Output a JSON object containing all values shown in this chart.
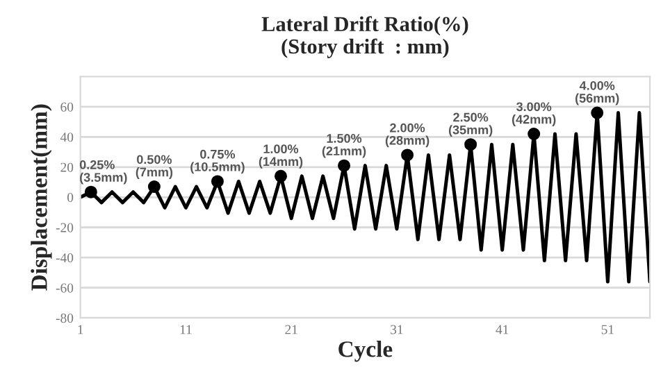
{
  "chart_data": {
    "type": "line",
    "title": "Lateral Drift Ratio(%)\n(Story drift  : mm)",
    "xlabel": "Cycle",
    "ylabel": "Displacement(mm)",
    "xlim": [
      1,
      55
    ],
    "xticks": [
      1,
      11,
      21,
      31,
      41,
      51
    ],
    "ylim": [
      -80,
      80
    ],
    "yticks": [
      -80,
      -60,
      -40,
      -20,
      0,
      20,
      40,
      60
    ],
    "grid": "y",
    "marker": "none",
    "line_style": "solid",
    "series": [
      {
        "color": "#000000",
        "x": [
          1,
          2,
          3,
          4,
          5,
          6,
          7,
          8,
          9,
          10,
          11,
          12,
          13,
          14,
          15,
          16,
          17,
          18,
          19,
          20,
          21,
          22,
          23,
          24,
          25,
          26,
          27,
          28,
          29,
          30,
          31,
          32,
          33,
          34,
          35,
          36,
          37,
          38,
          39,
          40,
          41,
          42,
          43,
          44,
          45,
          46,
          47,
          48,
          49,
          50,
          51,
          52,
          53,
          54,
          55
        ],
        "values": [
          0,
          3.5,
          -3.5,
          3.5,
          -3.5,
          3.5,
          -3.5,
          7,
          -7,
          7,
          -7,
          7,
          -7,
          10.5,
          -10.5,
          10.5,
          -10.5,
          10.5,
          -10.5,
          14,
          -14,
          14,
          -14,
          14,
          -14,
          21,
          -21,
          21,
          -21,
          21,
          -21,
          28,
          -28,
          28,
          -28,
          28,
          -28,
          35,
          -35,
          35,
          -35,
          35,
          -35,
          42,
          -42,
          42,
          -42,
          42,
          -42,
          56,
          -56,
          56,
          -56,
          56,
          -56
        ]
      },
      {
        "type": "scatter",
        "marker": "circle",
        "color": "#000000",
        "x": [
          2,
          8,
          14,
          20,
          26,
          32,
          38,
          44,
          50
        ],
        "values": [
          3.5,
          7,
          10.5,
          14,
          21,
          28,
          35,
          42,
          56
        ]
      }
    ],
    "annotations": [
      {
        "text": "0.25%\n(3.5mm)",
        "x": 2,
        "y": 3.5
      },
      {
        "text": "0.50%\n(7mm)",
        "x": 8,
        "y": 7
      },
      {
        "text": "0.75%\n(10.5mm)",
        "x": 14,
        "y": 10.5
      },
      {
        "text": "1.00%\n(14mm)",
        "x": 20,
        "y": 14
      },
      {
        "text": "1.50%\n(21mm)",
        "x": 26,
        "y": 21
      },
      {
        "text": "2.00%\n(28mm)",
        "x": 32,
        "y": 28
      },
      {
        "text": "2.50%\n(35mm)",
        "x": 38,
        "y": 35
      },
      {
        "text": "3.00%\n(42mm)",
        "x": 44,
        "y": 42
      },
      {
        "text": "4.00%\n(56mm)",
        "x": 50,
        "y": 56
      }
    ]
  }
}
